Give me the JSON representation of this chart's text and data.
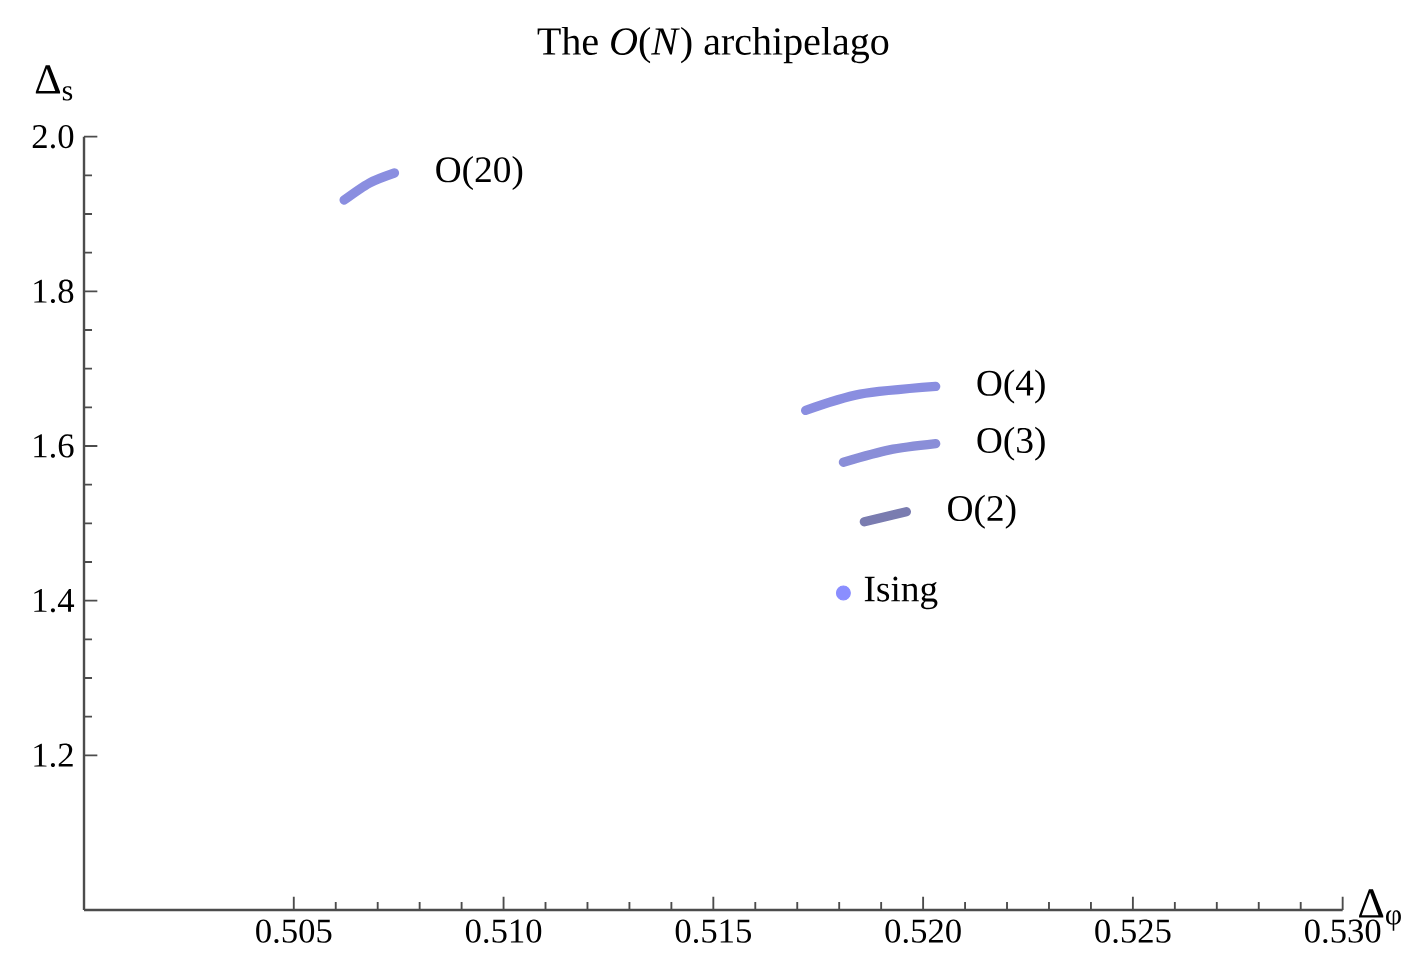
{
  "chart_data": {
    "type": "line",
    "title": "The *O*(*N*) archipelago",
    "xlabel": "Δ$_{φ}$",
    "ylabel": "Δ$_{s}$",
    "xlim": [
      0.5,
      0.53
    ],
    "ylim": [
      1.0,
      2.0
    ],
    "xticks": [
      0.505,
      {
        "value": 0.51,
        "label": "0.510"
      },
      0.515,
      {
        "value": 0.52,
        "label": "0.520"
      },
      0.525,
      {
        "value": 0.53,
        "label": "0.530"
      }
    ],
    "yticks": [
      1.2,
      1.4,
      1.6,
      1.8,
      {
        "value": 2,
        "label": "2.0"
      }
    ],
    "series": [
      {
        "name": "O(20)",
        "color": "#8a8ee0",
        "x": [
          0.5062,
          0.5068,
          0.5074
        ],
        "values": [
          1.918,
          1.94,
          1.953
        ]
      },
      {
        "name": "O(4)",
        "color": "#8a8ee0",
        "x": [
          0.5172,
          0.5185,
          0.5203
        ],
        "values": [
          1.646,
          1.667,
          1.677
        ]
      },
      {
        "name": "O(3)",
        "color": "#8a8ed8",
        "x": [
          0.5181,
          0.5192,
          0.5203
        ],
        "values": [
          1.579,
          1.595,
          1.603
        ]
      },
      {
        "name": "O(2)",
        "color": "#7a7cb0",
        "x": [
          0.5186,
          0.5196
        ],
        "values": [
          1.502,
          1.515
        ]
      },
      {
        "name": "Ising",
        "type": "scatter",
        "color": "#8a8eff",
        "x": [
          0.5181
        ],
        "values": [
          1.41
        ]
      }
    ]
  }
}
